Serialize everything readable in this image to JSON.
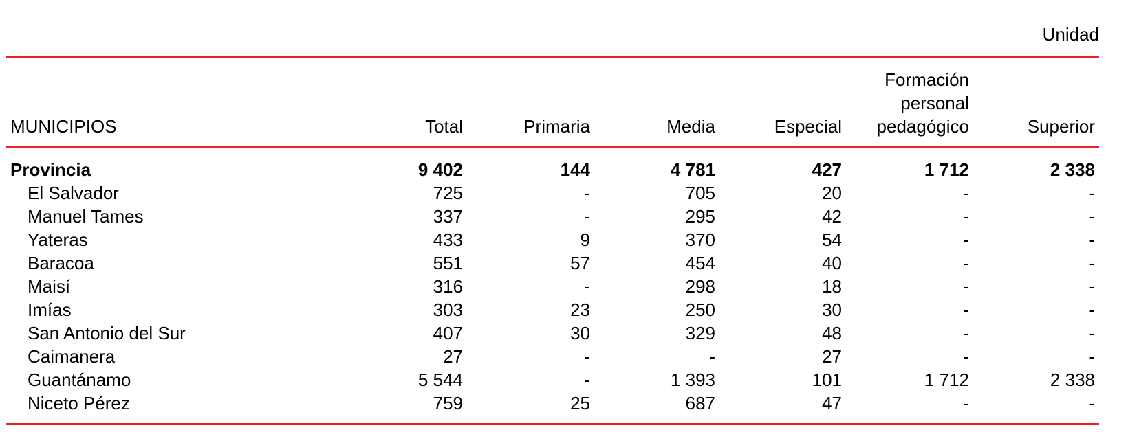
{
  "unit": "Unidad",
  "table": {
    "header": [
      "MUNICIPIOS",
      "Total",
      "Primaria",
      "Media",
      "Especial",
      "Formación personal pedagógico",
      "Superior"
    ],
    "rows": [
      [
        "Provincia",
        "9 402",
        "144",
        "4 781",
        "427",
        "1 712",
        "2 338"
      ],
      [
        "El Salvador",
        "725",
        "-",
        "705",
        "20",
        "-",
        "-"
      ],
      [
        "Manuel Tames",
        "337",
        "-",
        "295",
        "42",
        "-",
        "-"
      ],
      [
        "Yateras",
        "433",
        "9",
        "370",
        "54",
        "-",
        "-"
      ],
      [
        "Baracoa",
        "551",
        "57",
        "454",
        "40",
        "-",
        "-"
      ],
      [
        "Maisí",
        "316",
        "-",
        "298",
        "18",
        "-",
        "-"
      ],
      [
        "Imías",
        "303",
        "23",
        "250",
        "30",
        "-",
        "-"
      ],
      [
        "San Antonio del Sur",
        "407",
        "30",
        "329",
        "48",
        "-",
        "-"
      ],
      [
        "Caimanera",
        "27",
        "-",
        "-",
        "27",
        "-",
        "-"
      ],
      [
        "Guantánamo",
        "5 544",
        "-",
        "1 393",
        "101",
        "1 712",
        "2 338"
      ],
      [
        "Niceto Pérez",
        "759",
        "25",
        "687",
        "47",
        "-",
        "-"
      ]
    ]
  }
}
